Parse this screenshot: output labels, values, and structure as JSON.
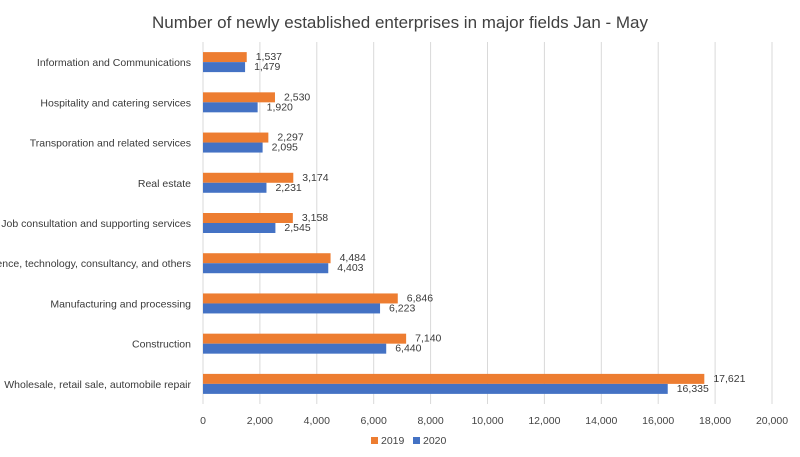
{
  "chart_data": {
    "type": "bar",
    "orientation": "horizontal",
    "title": "Number of newly established enterprises in major fields Jan - May",
    "xlabel": "",
    "ylabel": "",
    "xlim": [
      0,
      20000
    ],
    "x_ticks": [
      "0",
      "2,000",
      "4,000",
      "6,000",
      "8,000",
      "10,000",
      "12,000",
      "14,000",
      "16,000",
      "18,000",
      "20,000"
    ],
    "grid": true,
    "legend_position": "bottom",
    "categories": [
      "Information and Communications",
      "Hospitality and catering services",
      "Transporation and related services",
      "Real estate",
      "Job consultation and supporting services",
      "Science, technology, consultancy, and others",
      "Manufacturing and processing",
      "Construction",
      "Wholesale, retail sale, automobile repair"
    ],
    "series": [
      {
        "name": "2019",
        "color": "#ED7D31",
        "values": [
          1537,
          2530,
          2297,
          3174,
          3158,
          4484,
          6846,
          7140,
          17621
        ],
        "labels": [
          "1,537",
          "2,530",
          "2,297",
          "3,174",
          "3,158",
          "4,484",
          "6,846",
          "7,140",
          "17,621"
        ]
      },
      {
        "name": "2020",
        "color": "#4472C4",
        "values": [
          1479,
          1920,
          2095,
          2231,
          2545,
          4403,
          6223,
          6440,
          16335
        ],
        "labels": [
          "1,479",
          "1,920",
          "2,095",
          "2,231",
          "2,545",
          "4,403",
          "6,223",
          "6,440",
          "16,335"
        ]
      }
    ]
  }
}
